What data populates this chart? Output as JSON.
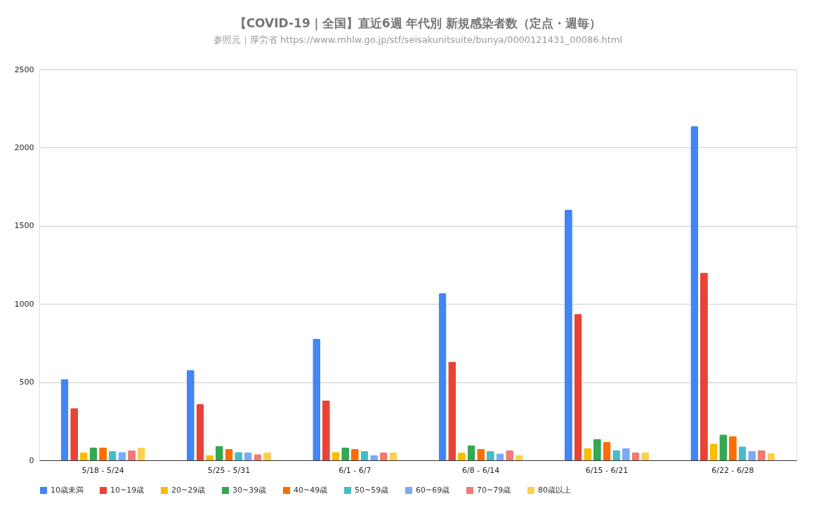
{
  "chart_data": {
    "type": "bar",
    "title": "【COVID-19｜全国】直近6週 年代別 新規感染者数（定点・週毎）",
    "subtitle": "参照元｜厚労省 https://www.mhlw.go.jp/stf/seisakunitsuite/bunya/0000121431_00086.html",
    "categories": [
      "5/18 - 5/24",
      "5/25 - 5/31",
      "6/1 - 6/7",
      "6/8 - 6/14",
      "6/15 - 6/21",
      "6/22 - 6/28"
    ],
    "series": [
      {
        "name": "10歳未満",
        "color": "#4285f4",
        "values": [
          520,
          578,
          777,
          1068,
          1602,
          2136
        ]
      },
      {
        "name": "10~19歳",
        "color": "#ea4335",
        "values": [
          333,
          359,
          383,
          631,
          937,
          1199
        ]
      },
      {
        "name": "20~29歳",
        "color": "#fbbc04",
        "values": [
          49,
          34,
          53,
          49,
          79,
          107
        ]
      },
      {
        "name": "30~39歳",
        "color": "#34a853",
        "values": [
          81,
          92,
          82,
          97,
          137,
          165
        ]
      },
      {
        "name": "40~49歳",
        "color": "#ff6d01",
        "values": [
          81,
          73,
          73,
          73,
          117,
          155
        ]
      },
      {
        "name": "50~59歳",
        "color": "#46bdc6",
        "values": [
          58,
          53,
          58,
          58,
          65,
          89
        ]
      },
      {
        "name": "60~69歳",
        "color": "#7baaf7",
        "values": [
          53,
          49,
          34,
          44,
          79,
          60
        ]
      },
      {
        "name": "70~79歳",
        "color": "#f07b72",
        "values": [
          63,
          39,
          49,
          63,
          51,
          65
        ]
      },
      {
        "name": "80歳以上",
        "color": "#fcd04f",
        "values": [
          81,
          49,
          49,
          34,
          51,
          46
        ]
      }
    ],
    "ylim": [
      0,
      2500
    ],
    "yticks": [
      0,
      500,
      1000,
      1500,
      2000,
      2500
    ],
    "grid": "y",
    "legend": "bottom"
  }
}
